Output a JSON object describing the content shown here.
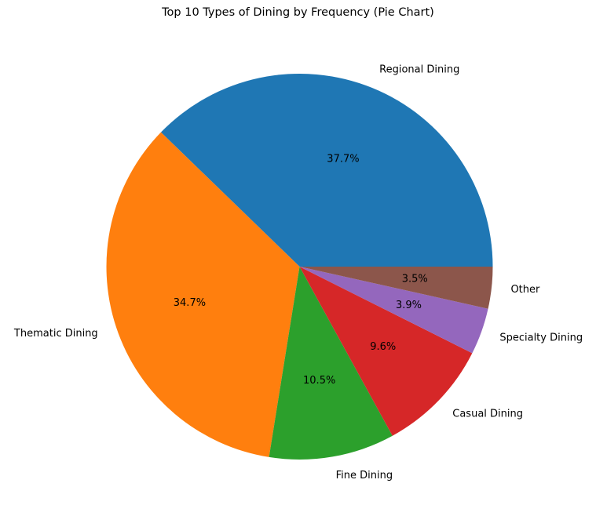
{
  "chart_data": {
    "type": "pie",
    "title": "Top 10 Types of Dining by Frequency (Pie Chart)",
    "start_angle_deg": 0,
    "direction": "counterclockwise",
    "slices": [
      {
        "label": "Regional Dining",
        "value": 37.7,
        "pct_label": "37.7%",
        "color": "#1f77b4"
      },
      {
        "label": "Thematic Dining",
        "value": 34.7,
        "pct_label": "34.7%",
        "color": "#ff7f0e"
      },
      {
        "label": "Fine Dining",
        "value": 10.5,
        "pct_label": "10.5%",
        "color": "#2ca02c"
      },
      {
        "label": "Casual Dining",
        "value": 9.6,
        "pct_label": "9.6%",
        "color": "#d62728"
      },
      {
        "label": "Specialty Dining",
        "value": 3.9,
        "pct_label": "3.9%",
        "color": "#9467bd"
      },
      {
        "label": "Other",
        "value": 3.5,
        "pct_label": "3.5%",
        "color": "#8c564b"
      }
    ]
  }
}
